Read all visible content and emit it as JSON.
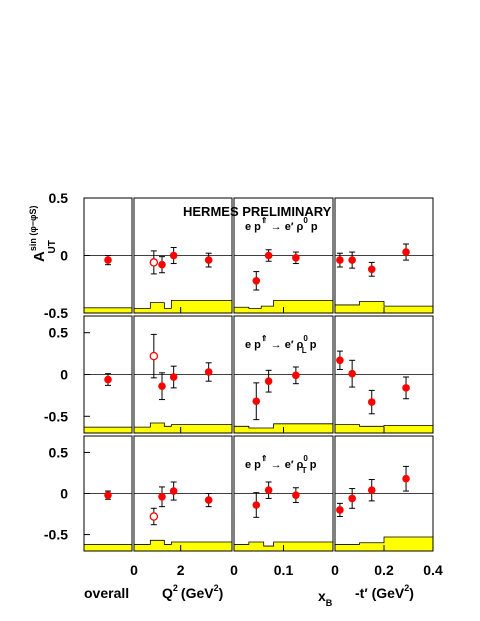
{
  "colors": {
    "point": "#ff0000",
    "band": "#ffff00",
    "band_edge": "#000000",
    "text_red": "#ff0000"
  },
  "text": {
    "preliminary": "HERMES PRELIMINARY",
    "ylabel_main": "A",
    "ylabel_sup": "sin (φ−φS)",
    "ylabel_sub": "UT",
    "xlabel_overall": "overall",
    "xlabel_q2": "Q",
    "xlabel_q2_sup": "2",
    "xlabel_q2_unit": "(GeV",
    "xlabel_q2_unit_sup": "2",
    "xlabel_q2_close": ")",
    "xlabel_xb": "x",
    "xlabel_xb_sub": "B",
    "xlabel_t": "-t′ (GeV",
    "xlabel_t_sup": "2",
    "xlabel_t_close": ")",
    "rows": [
      {
        "lhs": "e p",
        "arrow": "⇑",
        "mid": "→ e′ ρ",
        "sup": "0",
        "sub": "",
        "rhs": "p"
      },
      {
        "lhs": "e p",
        "arrow": "⇑",
        "mid": "→ e′ ρ",
        "sup": "0",
        "sub": "L",
        "rhs": "p"
      },
      {
        "lhs": "e p",
        "arrow": "⇑",
        "mid": "→ e′ ρ",
        "sup": "0",
        "sub": "T",
        "rhs": "p"
      }
    ]
  },
  "chart_data": {
    "type": "scatter",
    "title": "HERMES PRELIMINARY",
    "rows": [
      {
        "ylim": [
          -0.5,
          0.5
        ],
        "yticks": [
          -0.5,
          0,
          0.5
        ],
        "ytick_labels": [
          "-0.5",
          "0",
          "0.5"
        ],
        "overall": {
          "y": -0.04,
          "err": 0.04,
          "band": [
            -0.5,
            -0.455
          ]
        },
        "q2": {
          "points": [
            {
              "x": 0.85,
              "y": -0.06,
              "err": 0.1,
              "open": true
            },
            {
              "x": 1.2,
              "y": -0.08,
              "err": 0.07,
              "open": false
            },
            {
              "x": 1.7,
              "y": 0.0,
              "err": 0.07,
              "open": false
            },
            {
              "x": 3.2,
              "y": -0.04,
              "err": 0.06,
              "open": false
            }
          ],
          "band": [
            [
              0,
              0.7,
              -0.46
            ],
            [
              0.7,
              1.3,
              -0.41
            ],
            [
              1.3,
              1.6,
              -0.46
            ],
            [
              1.6,
              4.2,
              -0.39
            ]
          ]
        },
        "xb": {
          "points": [
            {
              "x": 0.045,
              "y": -0.22,
              "err": 0.08
            },
            {
              "x": 0.07,
              "y": 0.0,
              "err": 0.05
            },
            {
              "x": 0.125,
              "y": -0.02,
              "err": 0.05
            }
          ],
          "band": [
            [
              0,
              0.03,
              -0.45
            ],
            [
              0.03,
              0.055,
              -0.46
            ],
            [
              0.055,
              0.08,
              -0.44
            ],
            [
              0.08,
              0.2,
              -0.39
            ]
          ]
        },
        "t": {
          "points": [
            {
              "x": 0.02,
              "y": -0.04,
              "err": 0.06
            },
            {
              "x": 0.07,
              "y": -0.04,
              "err": 0.07
            },
            {
              "x": 0.15,
              "y": -0.12,
              "err": 0.06
            },
            {
              "x": 0.29,
              "y": 0.03,
              "err": 0.07
            }
          ],
          "band": [
            [
              0,
              0.1,
              -0.43
            ],
            [
              0.1,
              0.2,
              -0.4
            ],
            [
              0.2,
              0.4,
              -0.44
            ]
          ]
        }
      },
      {
        "ylim": [
          -0.7,
          0.7
        ],
        "yticks": [
          -0.5,
          0,
          0.5
        ],
        "ytick_labels": [
          "-0.5",
          "0",
          "0.5"
        ],
        "overall": {
          "y": -0.06,
          "err": 0.07,
          "band": [
            -0.7,
            -0.63
          ]
        },
        "q2": {
          "points": [
            {
              "x": 0.85,
              "y": 0.22,
              "err": 0.26,
              "open": true
            },
            {
              "x": 1.2,
              "y": -0.14,
              "err": 0.16,
              "open": false
            },
            {
              "x": 1.7,
              "y": -0.03,
              "err": 0.13,
              "open": false
            },
            {
              "x": 3.2,
              "y": 0.03,
              "err": 0.11,
              "open": false
            }
          ],
          "band": [
            [
              0,
              0.7,
              -0.63
            ],
            [
              0.7,
              1.3,
              -0.58
            ],
            [
              1.3,
              1.6,
              -0.62
            ],
            [
              1.6,
              4.2,
              -0.6
            ]
          ]
        },
        "xb": {
          "points": [
            {
              "x": 0.045,
              "y": -0.32,
              "err": 0.22
            },
            {
              "x": 0.07,
              "y": -0.08,
              "err": 0.13
            },
            {
              "x": 0.125,
              "y": -0.01,
              "err": 0.1
            }
          ],
          "band": [
            [
              0,
              0.03,
              -0.62
            ],
            [
              0.03,
              0.08,
              -0.64
            ],
            [
              0.08,
              0.2,
              -0.59
            ]
          ]
        },
        "t": {
          "points": [
            {
              "x": 0.02,
              "y": 0.17,
              "err": 0.11
            },
            {
              "x": 0.07,
              "y": 0.01,
              "err": 0.16
            },
            {
              "x": 0.15,
              "y": -0.33,
              "err": 0.14
            },
            {
              "x": 0.29,
              "y": -0.16,
              "err": 0.13
            }
          ],
          "band": [
            [
              0,
              0.1,
              -0.6
            ],
            [
              0.1,
              0.2,
              -0.62
            ],
            [
              0.2,
              0.4,
              -0.61
            ]
          ]
        }
      },
      {
        "ylim": [
          -0.7,
          0.7
        ],
        "yticks": [
          -0.5,
          0,
          0.5
        ],
        "ytick_labels": [
          "-0.5",
          "0",
          "0.5"
        ],
        "overall": {
          "y": -0.02,
          "err": 0.05,
          "band": [
            -0.7,
            -0.62
          ]
        },
        "q2": {
          "points": [
            {
              "x": 0.85,
              "y": -0.28,
              "err": 0.1,
              "open": true
            },
            {
              "x": 1.2,
              "y": -0.04,
              "err": 0.12,
              "open": false
            },
            {
              "x": 1.7,
              "y": 0.03,
              "err": 0.11,
              "open": false
            },
            {
              "x": 3.2,
              "y": -0.08,
              "err": 0.08,
              "open": false
            }
          ],
          "band": [
            [
              0,
              0.7,
              -0.62
            ],
            [
              0.7,
              1.3,
              -0.57
            ],
            [
              1.3,
              1.6,
              -0.62
            ],
            [
              1.6,
              4.2,
              -0.59
            ]
          ]
        },
        "xb": {
          "points": [
            {
              "x": 0.045,
              "y": -0.14,
              "err": 0.15
            },
            {
              "x": 0.07,
              "y": 0.04,
              "err": 0.1
            },
            {
              "x": 0.125,
              "y": -0.02,
              "err": 0.09
            }
          ],
          "band": [
            [
              0,
              0.03,
              -0.62
            ],
            [
              0.03,
              0.06,
              -0.59
            ],
            [
              0.06,
              0.08,
              -0.64
            ],
            [
              0.08,
              0.2,
              -0.59
            ]
          ]
        },
        "t": {
          "points": [
            {
              "x": 0.02,
              "y": -0.2,
              "err": 0.08
            },
            {
              "x": 0.07,
              "y": -0.06,
              "err": 0.12
            },
            {
              "x": 0.15,
              "y": 0.04,
              "err": 0.13
            },
            {
              "x": 0.29,
              "y": 0.18,
              "err": 0.15
            }
          ],
          "band": [
            [
              0,
              0.1,
              -0.62
            ],
            [
              0.1,
              0.2,
              -0.6
            ],
            [
              0.2,
              0.4,
              -0.53
            ]
          ]
        }
      }
    ],
    "columns": {
      "q2": {
        "xlim": [
          0,
          4.2
        ],
        "xticks": [
          0,
          2
        ],
        "xtick_labels": [
          "0",
          "2"
        ]
      },
      "xb": {
        "xlim": [
          0,
          0.2
        ],
        "xticks": [
          0,
          0.1
        ],
        "xtick_labels": [
          "0",
          "0.1"
        ]
      },
      "t": {
        "xlim": [
          0,
          0.4
        ],
        "xticks": [
          0,
          0.2,
          0.4
        ],
        "xtick_labels": [
          "0",
          "0.2",
          "0.4"
        ]
      }
    }
  }
}
